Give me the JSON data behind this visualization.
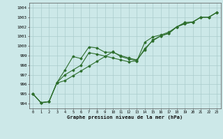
{
  "xlabel": "Graphe pression niveau de la mer (hPa)",
  "bg_color": "#cce8e8",
  "grid_color": "#aacccc",
  "line_color": "#2d6e2d",
  "xlim": [
    -0.5,
    23.5
  ],
  "ylim": [
    993.5,
    1004.5
  ],
  "yticks": [
    994,
    995,
    996,
    997,
    998,
    999,
    1000,
    1001,
    1002,
    1003,
    1004
  ],
  "xticks": [
    0,
    1,
    2,
    3,
    4,
    5,
    6,
    7,
    8,
    9,
    10,
    11,
    12,
    13,
    14,
    15,
    16,
    17,
    18,
    19,
    20,
    21,
    22,
    23
  ],
  "series1": {
    "x": [
      0,
      1,
      2,
      3,
      4,
      5,
      6,
      7,
      8,
      9,
      10,
      11,
      12,
      13,
      14,
      15,
      16,
      17,
      18,
      19,
      20,
      21,
      22,
      23
    ],
    "y": [
      995.0,
      994.1,
      994.2,
      996.2,
      997.5,
      998.9,
      998.7,
      999.9,
      999.8,
      999.35,
      999.35,
      999.0,
      998.75,
      998.55,
      999.6,
      1000.65,
      1001.05,
      1001.3,
      1002.0,
      1002.45,
      1002.5,
      1003.0,
      1003.0,
      1003.5
    ]
  },
  "series2": {
    "x": [
      0,
      1,
      2,
      3,
      4,
      5,
      6,
      7,
      8,
      9,
      10,
      11,
      12,
      13,
      14,
      15,
      16,
      17,
      18,
      19,
      20,
      21,
      22,
      23
    ],
    "y": [
      995.0,
      994.1,
      994.2,
      996.2,
      997.0,
      997.5,
      998.0,
      999.3,
      999.15,
      998.95,
      998.75,
      998.55,
      998.35,
      998.45,
      1000.4,
      1000.95,
      1001.15,
      1001.45,
      1002.0,
      1002.3,
      1002.5,
      1003.0,
      1003.0,
      1003.5
    ]
  },
  "series3": {
    "x": [
      0,
      1,
      2,
      3,
      4,
      5,
      6,
      7,
      8,
      9,
      10,
      11,
      12,
      13,
      14,
      15,
      16,
      17,
      18,
      19,
      20,
      21,
      22,
      23
    ],
    "y": [
      995.0,
      994.1,
      994.2,
      996.15,
      996.4,
      996.9,
      997.4,
      997.9,
      998.4,
      998.9,
      999.4,
      998.9,
      998.65,
      998.45,
      999.75,
      1000.55,
      1001.05,
      1001.35,
      1002.0,
      1002.35,
      1002.5,
      1003.0,
      1003.0,
      1003.5
    ]
  }
}
